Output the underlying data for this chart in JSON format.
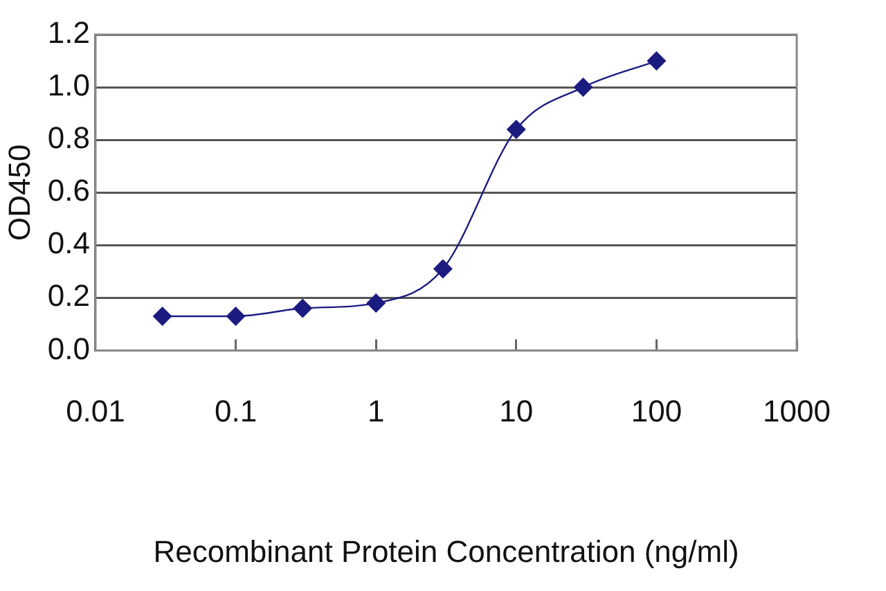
{
  "chart_data": {
    "type": "line",
    "xlabel": "Recombinant Protein Concentration (ng/ml)",
    "ylabel": "OD450",
    "x": [
      0.03,
      0.1,
      0.3,
      1,
      3,
      10,
      30,
      100
    ],
    "series": [
      {
        "color": "#1c1c80",
        "values": [
          0.13,
          0.13,
          0.16,
          0.18,
          0.31,
          0.84,
          1.0,
          1.1
        ]
      }
    ],
    "log": "x",
    "xlim": [
      0.01,
      1000
    ],
    "xticks": [
      0.01,
      0.1,
      1,
      10,
      100,
      1000
    ],
    "ylim": [
      0,
      1.2
    ],
    "yticks": [
      {
        "value": 0,
        "label": "0.0"
      },
      {
        "value": 0.2,
        "label": "0.2"
      },
      {
        "value": 0.4,
        "label": "0.4"
      },
      {
        "value": 0.6,
        "label": "0.6"
      },
      {
        "value": 0.8,
        "label": "0.8"
      },
      {
        "value": 1,
        "label": "1.0"
      },
      {
        "value": 1.2,
        "label": "1.2"
      }
    ],
    "grid": "y",
    "marker": "diamond",
    "line_style": "solid",
    "legend": false
  }
}
